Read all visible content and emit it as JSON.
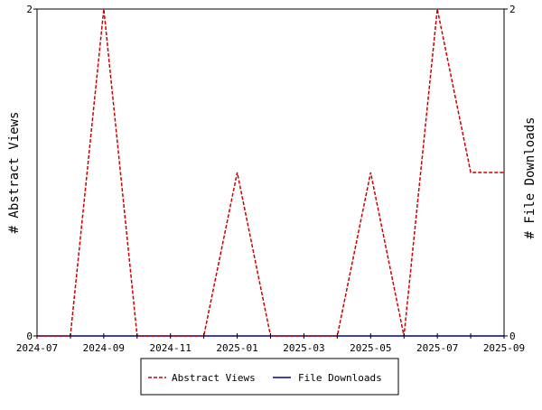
{
  "chart_data": {
    "type": "line",
    "x": [
      "2024-07",
      "2024-08",
      "2024-09",
      "2024-10",
      "2024-11",
      "2024-12",
      "2025-01",
      "2025-02",
      "2025-03",
      "2025-04",
      "2025-05",
      "2025-06",
      "2025-07",
      "2025-08",
      "2025-09"
    ],
    "x_tick_labels": [
      "2024-07",
      "2024-09",
      "2024-11",
      "2025-01",
      "2025-03",
      "2025-05",
      "2025-07",
      "2025-09"
    ],
    "ylabel_left": "# Abstract Views",
    "ylabel_right": "# File Downloads",
    "ylim_left": [
      0,
      2
    ],
    "ylim_right": [
      0,
      2
    ],
    "y_tick_labels_left": [
      "0",
      "2"
    ],
    "y_tick_labels_right": [
      "0",
      "2"
    ],
    "grid": false,
    "legend_position": "bottom-center",
    "series": [
      {
        "name": "Abstract Views",
        "axis": "left",
        "color": "#cc0000",
        "style": "dashed",
        "values": [
          0,
          0,
          2,
          0,
          0,
          0,
          1,
          0,
          0,
          0,
          1,
          0,
          2,
          1,
          1
        ]
      },
      {
        "name": "File Downloads",
        "axis": "right",
        "color": "#000099",
        "style": "solid",
        "values": [
          0,
          0,
          0,
          0,
          0,
          0,
          0,
          0,
          0,
          0,
          0,
          0,
          0,
          0,
          0
        ]
      }
    ]
  }
}
